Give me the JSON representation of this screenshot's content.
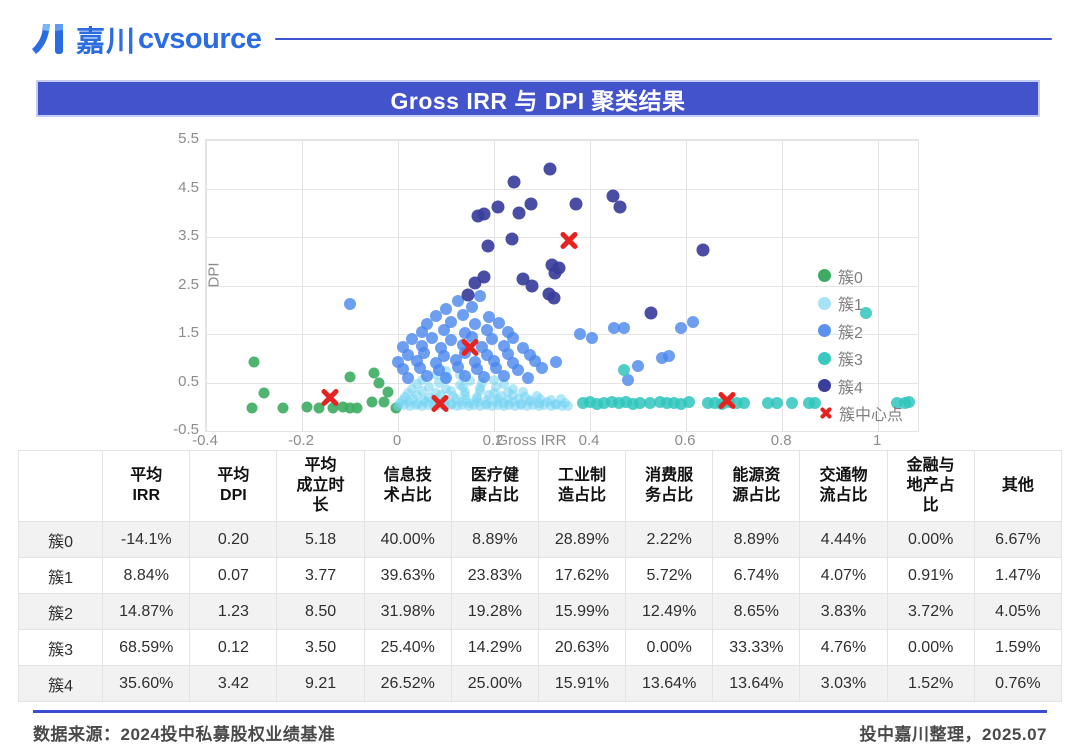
{
  "logo": {
    "brand_cn": "嘉川",
    "brand_en": "cvsource"
  },
  "title": "Gross IRR 与 DPI 聚类结果",
  "chart_data": {
    "type": "scatter",
    "title": "Gross IRR 与 DPI 聚类结果",
    "xlabel": "Gross IRR",
    "ylabel": "DPI",
    "xlim": [
      -0.4,
      1.083
    ],
    "ylim": [
      -0.5,
      5.5
    ],
    "xticks": [
      -0.4,
      -0.2,
      0,
      0.2,
      0.4,
      0.6,
      0.8,
      1
    ],
    "yticks": [
      5.5,
      4.5,
      3.5,
      2.5,
      1.5,
      0.5,
      -0.5
    ],
    "grid": true,
    "legend_position": "top-right",
    "series": [
      {
        "name": "簇0",
        "color": "#3dac62",
        "opacity": 0.9,
        "size": 11,
        "points": [
          [
            -0.3,
            0.93
          ],
          [
            -0.28,
            0.29
          ],
          [
            -0.305,
            -0.02
          ],
          [
            -0.24,
            -0.02
          ],
          [
            -0.19,
            -0.01
          ],
          [
            -0.165,
            -0.02
          ],
          [
            -0.135,
            -0.02
          ],
          [
            -0.115,
            -0.01
          ],
          [
            -0.1,
            -0.02
          ],
          [
            -0.085,
            -0.02
          ],
          [
            -0.1,
            0.62
          ],
          [
            -0.05,
            0.7
          ],
          [
            -0.04,
            0.48
          ],
          [
            -0.03,
            0.09
          ],
          [
            -0.02,
            0.3
          ],
          [
            -0.055,
            0.1
          ],
          [
            -0.005,
            -0.02
          ]
        ]
      },
      {
        "name": "簇1",
        "color": "#74d4f2",
        "opacity": 0.55,
        "size": 10,
        "points": [
          [
            0.0,
            0.01
          ],
          [
            0.013,
            0.03
          ],
          [
            0.025,
            0.02
          ],
          [
            0.037,
            0.04
          ],
          [
            0.05,
            0.01
          ],
          [
            0.062,
            0.03
          ],
          [
            0.074,
            0.02
          ],
          [
            0.086,
            0.04
          ],
          [
            0.098,
            0.01
          ],
          [
            0.11,
            0.03
          ],
          [
            0.122,
            0.02
          ],
          [
            0.134,
            0.04
          ],
          [
            0.147,
            0.01
          ],
          [
            0.159,
            0.03
          ],
          [
            0.171,
            0.02
          ],
          [
            0.183,
            0.04
          ],
          [
            0.195,
            0.01
          ],
          [
            0.208,
            0.03
          ],
          [
            0.22,
            0.02
          ],
          [
            0.232,
            0.04
          ],
          [
            0.244,
            0.01
          ],
          [
            0.256,
            0.03
          ],
          [
            0.269,
            0.02
          ],
          [
            0.281,
            0.04
          ],
          [
            0.293,
            0.01
          ],
          [
            0.305,
            0.03
          ],
          [
            0.318,
            0.02
          ],
          [
            0.33,
            0.04
          ],
          [
            0.342,
            0.01
          ],
          [
            0.355,
            0.02
          ],
          [
            0.005,
            0.07
          ],
          [
            0.023,
            0.09
          ],
          [
            0.041,
            0.06
          ],
          [
            0.059,
            0.1
          ],
          [
            0.077,
            0.07
          ],
          [
            0.095,
            0.09
          ],
          [
            0.113,
            0.06
          ],
          [
            0.131,
            0.1
          ],
          [
            0.149,
            0.07
          ],
          [
            0.167,
            0.09
          ],
          [
            0.185,
            0.06
          ],
          [
            0.203,
            0.1
          ],
          [
            0.221,
            0.07
          ],
          [
            0.239,
            0.09
          ],
          [
            0.257,
            0.06
          ],
          [
            0.275,
            0.1
          ],
          [
            0.293,
            0.07
          ],
          [
            0.311,
            0.09
          ],
          [
            0.329,
            0.06
          ],
          [
            0.347,
            0.08
          ],
          [
            0.01,
            0.14
          ],
          [
            0.032,
            0.16
          ],
          [
            0.054,
            0.13
          ],
          [
            0.076,
            0.17
          ],
          [
            0.098,
            0.14
          ],
          [
            0.12,
            0.16
          ],
          [
            0.142,
            0.13
          ],
          [
            0.164,
            0.17
          ],
          [
            0.186,
            0.14
          ],
          [
            0.208,
            0.16
          ],
          [
            0.23,
            0.13
          ],
          [
            0.252,
            0.17
          ],
          [
            0.274,
            0.14
          ],
          [
            0.296,
            0.16
          ],
          [
            0.318,
            0.13
          ],
          [
            0.34,
            0.15
          ],
          [
            0.015,
            0.21
          ],
          [
            0.04,
            0.24
          ],
          [
            0.065,
            0.2
          ],
          [
            0.09,
            0.25
          ],
          [
            0.115,
            0.22
          ],
          [
            0.14,
            0.24
          ],
          [
            0.165,
            0.2
          ],
          [
            0.19,
            0.25
          ],
          [
            0.215,
            0.22
          ],
          [
            0.24,
            0.24
          ],
          [
            0.265,
            0.21
          ],
          [
            0.29,
            0.23
          ],
          [
            0.02,
            0.29
          ],
          [
            0.05,
            0.32
          ],
          [
            0.08,
            0.28
          ],
          [
            0.11,
            0.33
          ],
          [
            0.14,
            0.3
          ],
          [
            0.17,
            0.32
          ],
          [
            0.2,
            0.29
          ],
          [
            0.23,
            0.31
          ],
          [
            0.26,
            0.3
          ],
          [
            0.03,
            0.37
          ],
          [
            0.065,
            0.4
          ],
          [
            0.1,
            0.36
          ],
          [
            0.135,
            0.41
          ],
          [
            0.17,
            0.38
          ],
          [
            0.205,
            0.4
          ],
          [
            0.24,
            0.37
          ],
          [
            0.04,
            0.46
          ],
          [
            0.085,
            0.48
          ],
          [
            0.13,
            0.45
          ],
          [
            0.175,
            0.49
          ],
          [
            0.22,
            0.46
          ],
          [
            0.05,
            0.55
          ],
          [
            0.1,
            0.57
          ],
          [
            0.15,
            0.54
          ],
          [
            0.2,
            0.56
          ],
          [
            0.08,
            0.65
          ],
          [
            0.13,
            0.66
          ],
          [
            0.1,
            0.74
          ]
        ]
      },
      {
        "name": "簇2",
        "color": "#4a86ec",
        "opacity": 0.8,
        "size": 12,
        "points": [
          [
            0.02,
            0.6
          ],
          [
            0.06,
            0.63
          ],
          [
            0.1,
            0.59
          ],
          [
            0.14,
            0.64
          ],
          [
            0.18,
            0.61
          ],
          [
            0.22,
            0.63
          ],
          [
            0.27,
            0.6
          ],
          [
            0.01,
            0.77
          ],
          [
            0.045,
            0.8
          ],
          [
            0.085,
            0.75
          ],
          [
            0.125,
            0.81
          ],
          [
            0.165,
            0.77
          ],
          [
            0.205,
            0.79
          ],
          [
            0.25,
            0.76
          ],
          [
            0.3,
            0.79
          ],
          [
            0.0,
            0.92
          ],
          [
            0.04,
            0.95
          ],
          [
            0.08,
            0.9
          ],
          [
            0.12,
            0.96
          ],
          [
            0.16,
            0.92
          ],
          [
            0.2,
            0.94
          ],
          [
            0.24,
            0.91
          ],
          [
            0.285,
            0.95
          ],
          [
            0.33,
            0.92
          ],
          [
            0.02,
            1.07
          ],
          [
            0.055,
            1.1
          ],
          [
            0.095,
            1.05
          ],
          [
            0.14,
            1.11
          ],
          [
            0.185,
            1.07
          ],
          [
            0.23,
            1.09
          ],
          [
            0.275,
            1.06
          ],
          [
            0.01,
            1.23
          ],
          [
            0.05,
            1.26
          ],
          [
            0.09,
            1.21
          ],
          [
            0.135,
            1.27
          ],
          [
            0.175,
            1.23
          ],
          [
            0.22,
            1.25
          ],
          [
            0.26,
            1.22
          ],
          [
            0.03,
            1.39
          ],
          [
            0.07,
            1.42
          ],
          [
            0.11,
            1.37
          ],
          [
            0.155,
            1.43
          ],
          [
            0.195,
            1.39
          ],
          [
            0.24,
            1.41
          ],
          [
            0.05,
            1.55
          ],
          [
            0.095,
            1.58
          ],
          [
            0.14,
            1.53
          ],
          [
            0.185,
            1.58
          ],
          [
            0.23,
            1.55
          ],
          [
            0.06,
            1.71
          ],
          [
            0.11,
            1.74
          ],
          [
            0.16,
            1.7
          ],
          [
            0.21,
            1.73
          ],
          [
            0.08,
            1.87
          ],
          [
            0.135,
            1.9
          ],
          [
            0.19,
            1.86
          ],
          [
            0.1,
            2.02
          ],
          [
            0.155,
            2.05
          ],
          [
            0.125,
            2.18
          ],
          [
            0.17,
            2.28
          ],
          [
            -0.1,
            2.12
          ],
          [
            0.38,
            1.5
          ],
          [
            0.405,
            1.42
          ],
          [
            0.45,
            1.63
          ],
          [
            0.47,
            1.62
          ],
          [
            0.48,
            0.55
          ],
          [
            0.5,
            0.83
          ],
          [
            0.55,
            1.0
          ],
          [
            0.565,
            1.05
          ],
          [
            0.59,
            1.63
          ],
          [
            0.615,
            1.74
          ]
        ]
      },
      {
        "name": "簇3",
        "color": "#2fc5bc",
        "opacity": 0.85,
        "size": 12,
        "points": [
          [
            0.385,
            0.07
          ],
          [
            0.4,
            0.09
          ],
          [
            0.415,
            0.06
          ],
          [
            0.43,
            0.08
          ],
          [
            0.445,
            0.1
          ],
          [
            0.46,
            0.07
          ],
          [
            0.475,
            0.09
          ],
          [
            0.49,
            0.06
          ],
          [
            0.505,
            0.08
          ],
          [
            0.525,
            0.07
          ],
          [
            0.545,
            0.09
          ],
          [
            0.56,
            0.07
          ],
          [
            0.575,
            0.08
          ],
          [
            0.59,
            0.06
          ],
          [
            0.605,
            0.09
          ],
          [
            0.645,
            0.07
          ],
          [
            0.66,
            0.08
          ],
          [
            0.675,
            0.06
          ],
          [
            0.69,
            0.09
          ],
          [
            0.705,
            0.07
          ],
          [
            0.72,
            0.08
          ],
          [
            0.77,
            0.07
          ],
          [
            0.79,
            0.08
          ],
          [
            0.82,
            0.07
          ],
          [
            0.855,
            0.08
          ],
          [
            0.868,
            0.07
          ],
          [
            1.04,
            0.08
          ],
          [
            1.055,
            0.07
          ],
          [
            1.065,
            0.09
          ],
          [
            0.47,
            0.75
          ],
          [
            0.975,
            1.94
          ]
        ]
      },
      {
        "name": "簇4",
        "color": "#3a3e9c",
        "opacity": 0.92,
        "size": 13,
        "points": [
          [
            0.317,
            4.9
          ],
          [
            0.242,
            4.64
          ],
          [
            0.277,
            4.19
          ],
          [
            0.371,
            4.19
          ],
          [
            0.448,
            4.35
          ],
          [
            0.463,
            4.11
          ],
          [
            0.208,
            4.11
          ],
          [
            0.252,
            4.0
          ],
          [
            0.167,
            3.94
          ],
          [
            0.18,
            3.98
          ],
          [
            0.237,
            3.45
          ],
          [
            0.188,
            3.32
          ],
          [
            0.635,
            3.24
          ],
          [
            0.32,
            2.92
          ],
          [
            0.335,
            2.87
          ],
          [
            0.327,
            2.76
          ],
          [
            0.18,
            2.67
          ],
          [
            0.26,
            2.64
          ],
          [
            0.16,
            2.56
          ],
          [
            0.28,
            2.5
          ],
          [
            0.315,
            2.33
          ],
          [
            0.325,
            2.25
          ],
          [
            0.527,
            1.94
          ],
          [
            0.145,
            2.3
          ]
        ]
      }
    ],
    "centers": {
      "name": "簇中心点",
      "color": "#e52421",
      "points": [
        [
          -0.141,
          0.2
        ],
        [
          0.088,
          0.07
        ],
        [
          0.149,
          1.23
        ],
        [
          0.686,
          0.12
        ],
        [
          0.356,
          3.42
        ]
      ]
    }
  },
  "table": {
    "columns": [
      [
        ""
      ],
      [
        "平均",
        "IRR"
      ],
      [
        "平均",
        "DPI"
      ],
      [
        "平均",
        "成立时",
        "长"
      ],
      [
        "信息技",
        "术占比"
      ],
      [
        "医疗健",
        "康占比"
      ],
      [
        "工业制",
        "造占比"
      ],
      [
        "消费服",
        "务占比"
      ],
      [
        "能源资",
        "源占比"
      ],
      [
        "交通物",
        "流占比"
      ],
      [
        "金融与",
        "地产占",
        "比"
      ],
      [
        "其他"
      ]
    ],
    "rows": [
      {
        "label": "簇0",
        "values": [
          "-14.1%",
          "0.20",
          "5.18",
          "40.00%",
          "8.89%",
          "28.89%",
          "2.22%",
          "8.89%",
          "4.44%",
          "0.00%",
          "6.67%"
        ]
      },
      {
        "label": "簇1",
        "values": [
          "8.84%",
          "0.07",
          "3.77",
          "39.63%",
          "23.83%",
          "17.62%",
          "5.72%",
          "6.74%",
          "4.07%",
          "0.91%",
          "1.47%"
        ]
      },
      {
        "label": "簇2",
        "values": [
          "14.87%",
          "1.23",
          "8.50",
          "31.98%",
          "19.28%",
          "15.99%",
          "12.49%",
          "8.65%",
          "3.83%",
          "3.72%",
          "4.05%"
        ]
      },
      {
        "label": "簇3",
        "values": [
          "68.59%",
          "0.12",
          "3.50",
          "25.40%",
          "14.29%",
          "20.63%",
          "0.00%",
          "33.33%",
          "4.76%",
          "0.00%",
          "1.59%"
        ]
      },
      {
        "label": "簇4",
        "values": [
          "35.60%",
          "3.42",
          "9.21",
          "26.52%",
          "25.00%",
          "15.91%",
          "13.64%",
          "13.64%",
          "3.03%",
          "1.52%",
          "0.76%"
        ]
      }
    ]
  },
  "footer": {
    "source": "数据来源：2024投中私募股权业绩基准",
    "credit": "投中嘉川整理，2025.07"
  }
}
